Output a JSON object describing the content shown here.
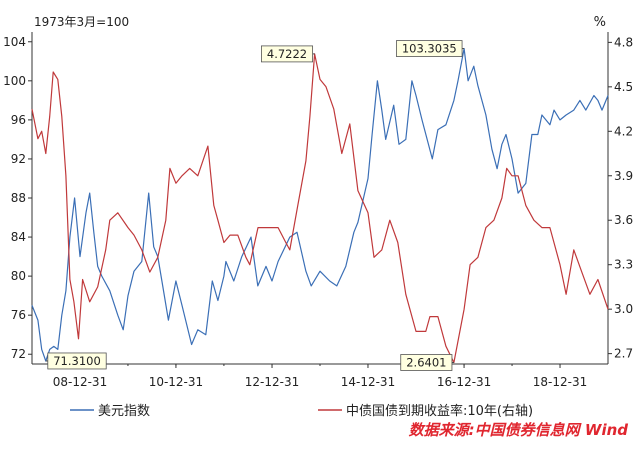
{
  "chart_data": {
    "type": "line",
    "title": "",
    "left_axis": {
      "note": "1973年3月=100",
      "ticks": [
        72,
        76,
        80,
        84,
        88,
        92,
        96,
        100,
        104
      ],
      "range": [
        71,
        105
      ]
    },
    "right_axis": {
      "unit": "%",
      "ticks": [
        2.7,
        3.0,
        3.3,
        3.6,
        3.9,
        4.2,
        4.5,
        4.8
      ],
      "range": [
        2.63,
        4.87
      ]
    },
    "x_axis": {
      "tick_labels": [
        "08-12-31",
        "10-12-31",
        "12-12-31",
        "14-12-31",
        "16-12-31",
        "18-12-31"
      ],
      "range": [
        "2008-01-01",
        "2019-12-31"
      ]
    },
    "legend_position": "bottom",
    "grid": false,
    "series": [
      {
        "name": "美元指数",
        "axis": "left",
        "color": "#3b6fb6",
        "points": [
          [
            "2008-01-01",
            77.0
          ],
          [
            "2008-02-15",
            75.5
          ],
          [
            "2008-03-15",
            72.5
          ],
          [
            "2008-04-15",
            71.31
          ],
          [
            "2008-05-15",
            72.5
          ],
          [
            "2008-06-15",
            72.8
          ],
          [
            "2008-07-15",
            72.5
          ],
          [
            "2008-08-15",
            76.0
          ],
          [
            "2008-09-15",
            78.5
          ],
          [
            "2008-10-15",
            84.0
          ],
          [
            "2008-11-20",
            88.0
          ],
          [
            "2008-12-31",
            82.0
          ],
          [
            "2009-02-15",
            86.5
          ],
          [
            "2009-03-15",
            88.5
          ],
          [
            "2009-04-15",
            84.5
          ],
          [
            "2009-05-15",
            81.0
          ],
          [
            "2009-06-15",
            80.0
          ],
          [
            "2009-08-15",
            78.5
          ],
          [
            "2009-10-15",
            76.0
          ],
          [
            "2009-11-25",
            74.5
          ],
          [
            "2009-12-31",
            78.0
          ],
          [
            "2010-02-15",
            80.5
          ],
          [
            "2010-04-15",
            81.5
          ],
          [
            "2010-06-07",
            88.5
          ],
          [
            "2010-07-15",
            83.0
          ],
          [
            "2010-08-15",
            82.0
          ],
          [
            "2010-09-15",
            79.5
          ],
          [
            "2010-11-04",
            75.5
          ],
          [
            "2010-12-31",
            79.5
          ],
          [
            "2011-02-15",
            77.0
          ],
          [
            "2011-04-29",
            73.0
          ],
          [
            "2011-06-15",
            74.5
          ],
          [
            "2011-08-15",
            74.0
          ],
          [
            "2011-10-04",
            79.5
          ],
          [
            "2011-11-15",
            77.5
          ],
          [
            "2011-12-31",
            80.0
          ],
          [
            "2012-01-15",
            81.5
          ],
          [
            "2012-03-15",
            79.5
          ],
          [
            "2012-05-15",
            82.0
          ],
          [
            "2012-07-24",
            84.0
          ],
          [
            "2012-09-14",
            79.0
          ],
          [
            "2012-11-15",
            81.0
          ],
          [
            "2012-12-31",
            79.5
          ],
          [
            "2013-02-15",
            81.5
          ],
          [
            "2013-05-15",
            84.0
          ],
          [
            "2013-07-09",
            84.5
          ],
          [
            "2013-09-15",
            80.5
          ],
          [
            "2013-10-25",
            79.0
          ],
          [
            "2013-12-31",
            80.5
          ],
          [
            "2014-03-15",
            79.5
          ],
          [
            "2014-05-08",
            79.0
          ],
          [
            "2014-07-15",
            81.0
          ],
          [
            "2014-09-15",
            84.5
          ],
          [
            "2014-10-15",
            85.5
          ],
          [
            "2014-12-31",
            90.0
          ],
          [
            "2015-01-31",
            94.5
          ],
          [
            "2015-03-13",
            100.0
          ],
          [
            "2015-04-15",
            97.0
          ],
          [
            "2015-05-15",
            94.0
          ],
          [
            "2015-07-15",
            97.5
          ],
          [
            "2015-08-24",
            93.5
          ],
          [
            "2015-10-15",
            94.0
          ],
          [
            "2015-11-30",
            100.0
          ],
          [
            "2015-12-31",
            98.5
          ],
          [
            "2016-02-15",
            96.0
          ],
          [
            "2016-05-03",
            92.0
          ],
          [
            "2016-06-15",
            95.0
          ],
          [
            "2016-08-15",
            95.5
          ],
          [
            "2016-10-15",
            98.0
          ],
          [
            "2016-11-15",
            100.0
          ],
          [
            "2016-12-31",
            103.3035
          ],
          [
            "2017-01-31",
            100.0
          ],
          [
            "2017-03-15",
            101.5
          ],
          [
            "2017-04-15",
            99.5
          ],
          [
            "2017-06-15",
            96.5
          ],
          [
            "2017-07-31",
            93.0
          ],
          [
            "2017-09-08",
            91.0
          ],
          [
            "2017-10-15",
            93.5
          ],
          [
            "2017-11-15",
            94.5
          ],
          [
            "2017-12-31",
            92.0
          ],
          [
            "2018-02-15",
            88.5
          ],
          [
            "2018-04-15",
            89.5
          ],
          [
            "2018-05-31",
            94.5
          ],
          [
            "2018-07-15",
            94.5
          ],
          [
            "2018-08-15",
            96.5
          ],
          [
            "2018-10-15",
            95.5
          ],
          [
            "2018-11-15",
            97.0
          ],
          [
            "2018-12-31",
            96.0
          ],
          [
            "2019-02-15",
            96.5
          ],
          [
            "2019-04-15",
            97.0
          ],
          [
            "2019-05-31",
            98.0
          ],
          [
            "2019-07-15",
            97.0
          ],
          [
            "2019-09-15",
            98.5
          ],
          [
            "2019-10-15",
            98.0
          ],
          [
            "2019-11-15",
            97.0
          ],
          [
            "2019-12-31",
            98.5
          ]
        ]
      },
      {
        "name": "中债国债到期收益率:10年(右轴)",
        "axis": "right",
        "color": "#c0393b",
        "points": [
          [
            "2008-01-01",
            4.35
          ],
          [
            "2008-02-15",
            4.15
          ],
          [
            "2008-03-15",
            4.2
          ],
          [
            "2008-04-15",
            4.05
          ],
          [
            "2008-05-15",
            4.3
          ],
          [
            "2008-06-10",
            4.6
          ],
          [
            "2008-07-15",
            4.55
          ],
          [
            "2008-08-15",
            4.3
          ],
          [
            "2008-09-15",
            3.9
          ],
          [
            "2008-10-15",
            3.2
          ],
          [
            "2008-11-15",
            3.05
          ],
          [
            "2008-12-20",
            2.8
          ],
          [
            "2009-01-20",
            3.2
          ],
          [
            "2009-03-15",
            3.05
          ],
          [
            "2009-05-15",
            3.15
          ],
          [
            "2009-07-15",
            3.4
          ],
          [
            "2009-08-15",
            3.6
          ],
          [
            "2009-10-15",
            3.65
          ],
          [
            "2009-12-31",
            3.55
          ],
          [
            "2010-02-15",
            3.5
          ],
          [
            "2010-04-15",
            3.4
          ],
          [
            "2010-06-15",
            3.25
          ],
          [
            "2010-08-15",
            3.35
          ],
          [
            "2010-10-15",
            3.6
          ],
          [
            "2010-11-15",
            3.95
          ],
          [
            "2010-12-31",
            3.85
          ],
          [
            "2011-02-15",
            3.9
          ],
          [
            "2011-04-15",
            3.95
          ],
          [
            "2011-06-15",
            3.9
          ],
          [
            "2011-08-31",
            4.1
          ],
          [
            "2011-10-15",
            3.7
          ],
          [
            "2011-11-15",
            3.6
          ],
          [
            "2011-12-31",
            3.45
          ],
          [
            "2012-02-15",
            3.5
          ],
          [
            "2012-04-15",
            3.5
          ],
          [
            "2012-06-15",
            3.35
          ],
          [
            "2012-07-15",
            3.3
          ],
          [
            "2012-09-15",
            3.55
          ],
          [
            "2012-12-31",
            3.55
          ],
          [
            "2013-02-15",
            3.55
          ],
          [
            "2013-04-15",
            3.45
          ],
          [
            "2013-05-15",
            3.4
          ],
          [
            "2013-07-15",
            3.7
          ],
          [
            "2013-09-15",
            4.0
          ],
          [
            "2013-10-15",
            4.3
          ],
          [
            "2013-11-20",
            4.7222
          ],
          [
            "2013-12-31",
            4.55
          ],
          [
            "2014-02-15",
            4.5
          ],
          [
            "2014-04-15",
            4.35
          ],
          [
            "2014-06-15",
            4.05
          ],
          [
            "2014-08-15",
            4.25
          ],
          [
            "2014-10-15",
            3.8
          ],
          [
            "2014-12-31",
            3.65
          ],
          [
            "2015-02-15",
            3.35
          ],
          [
            "2015-04-15",
            3.4
          ],
          [
            "2015-06-15",
            3.6
          ],
          [
            "2015-08-15",
            3.45
          ],
          [
            "2015-10-15",
            3.1
          ],
          [
            "2015-12-31",
            2.85
          ],
          [
            "2016-03-15",
            2.85
          ],
          [
            "2016-04-15",
            2.95
          ],
          [
            "2016-06-15",
            2.95
          ],
          [
            "2016-08-15",
            2.75
          ],
          [
            "2016-10-15",
            2.6401
          ],
          [
            "2016-12-31",
            3.0
          ],
          [
            "2017-02-15",
            3.3
          ],
          [
            "2017-04-15",
            3.35
          ],
          [
            "2017-06-15",
            3.55
          ],
          [
            "2017-08-15",
            3.6
          ],
          [
            "2017-10-15",
            3.75
          ],
          [
            "2017-11-20",
            3.95
          ],
          [
            "2017-12-31",
            3.9
          ],
          [
            "2018-02-15",
            3.9
          ],
          [
            "2018-04-15",
            3.7
          ],
          [
            "2018-06-15",
            3.6
          ],
          [
            "2018-08-15",
            3.55
          ],
          [
            "2018-10-15",
            3.55
          ],
          [
            "2018-12-31",
            3.3
          ],
          [
            "2019-02-15",
            3.1
          ],
          [
            "2019-04-15",
            3.4
          ],
          [
            "2019-06-15",
            3.25
          ],
          [
            "2019-08-15",
            3.1
          ],
          [
            "2019-10-15",
            3.2
          ],
          [
            "2019-12-31",
            3.0
          ]
        ]
      }
    ],
    "annotations": [
      {
        "text": "71.3100",
        "series": 0,
        "date": "2008-04-15",
        "value": 71.31
      },
      {
        "text": "103.3035",
        "series": 0,
        "date": "2016-12-31",
        "value": 103.3035
      },
      {
        "text": "4.7222",
        "series": 1,
        "date": "2013-11-20",
        "value": 4.7222
      },
      {
        "text": "2.6401",
        "series": 1,
        "date": "2016-10-15",
        "value": 2.6401
      }
    ]
  },
  "source_note": "数据来源:中国债券信息网 Wind"
}
